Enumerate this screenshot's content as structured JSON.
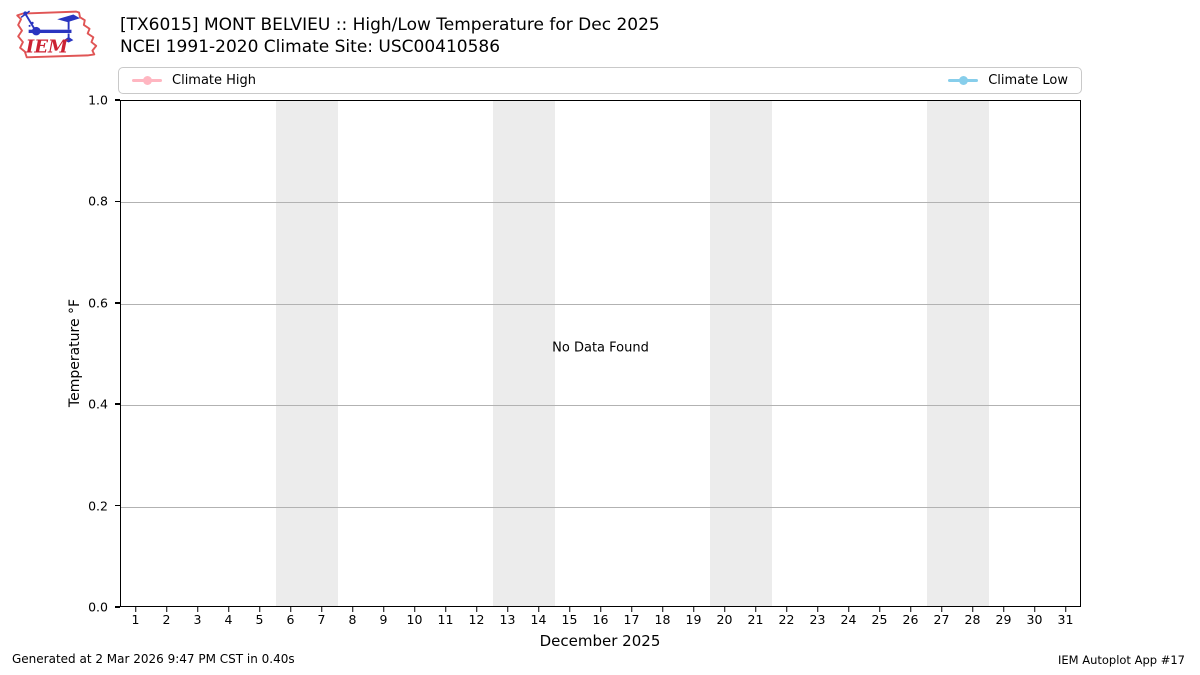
{
  "header": {
    "title_line1": "[TX6015] MONT BELVIEU :: High/Low Temperature for Dec 2025",
    "title_line2": "NCEI 1991-2020 Climate Site: USC00410586",
    "logo_text": "IEM"
  },
  "legend": {
    "items": [
      {
        "label": "Climate High",
        "color": "#ffb6c1"
      },
      {
        "label": "Climate Low",
        "color": "#87ceeb"
      }
    ]
  },
  "chart_data": {
    "type": "line",
    "title": "[TX6015] MONT BELVIEU :: High/Low Temperature for Dec 2025",
    "subtitle": "NCEI 1991-2020 Climate Site: USC00410586",
    "xlabel": "December 2025",
    "ylabel": "Temperature °F",
    "xlim": [
      0.5,
      31.5
    ],
    "ylim": [
      0.0,
      1.0
    ],
    "x_ticks": [
      1,
      2,
      3,
      4,
      5,
      6,
      7,
      8,
      9,
      10,
      11,
      12,
      13,
      14,
      15,
      16,
      17,
      18,
      19,
      20,
      21,
      22,
      23,
      24,
      25,
      26,
      27,
      28,
      29,
      30,
      31
    ],
    "y_ticks": [
      0.0,
      0.2,
      0.4,
      0.6,
      0.8,
      1.0
    ],
    "grid": true,
    "legend_position": "top",
    "series": [
      {
        "name": "Climate High",
        "color": "#ffb6c1",
        "values": []
      },
      {
        "name": "Climate Low",
        "color": "#87ceeb",
        "values": []
      }
    ],
    "no_data_message": "No Data Found",
    "weekend_bands": [
      [
        5.5,
        7.5
      ],
      [
        12.5,
        14.5
      ],
      [
        19.5,
        21.5
      ],
      [
        26.5,
        28.5
      ]
    ],
    "band_color": "#ececec"
  },
  "footer": {
    "left": "Generated at 2 Mar 2026 9:47 PM CST in 0.40s",
    "right": "IEM Autoplot App #17"
  }
}
